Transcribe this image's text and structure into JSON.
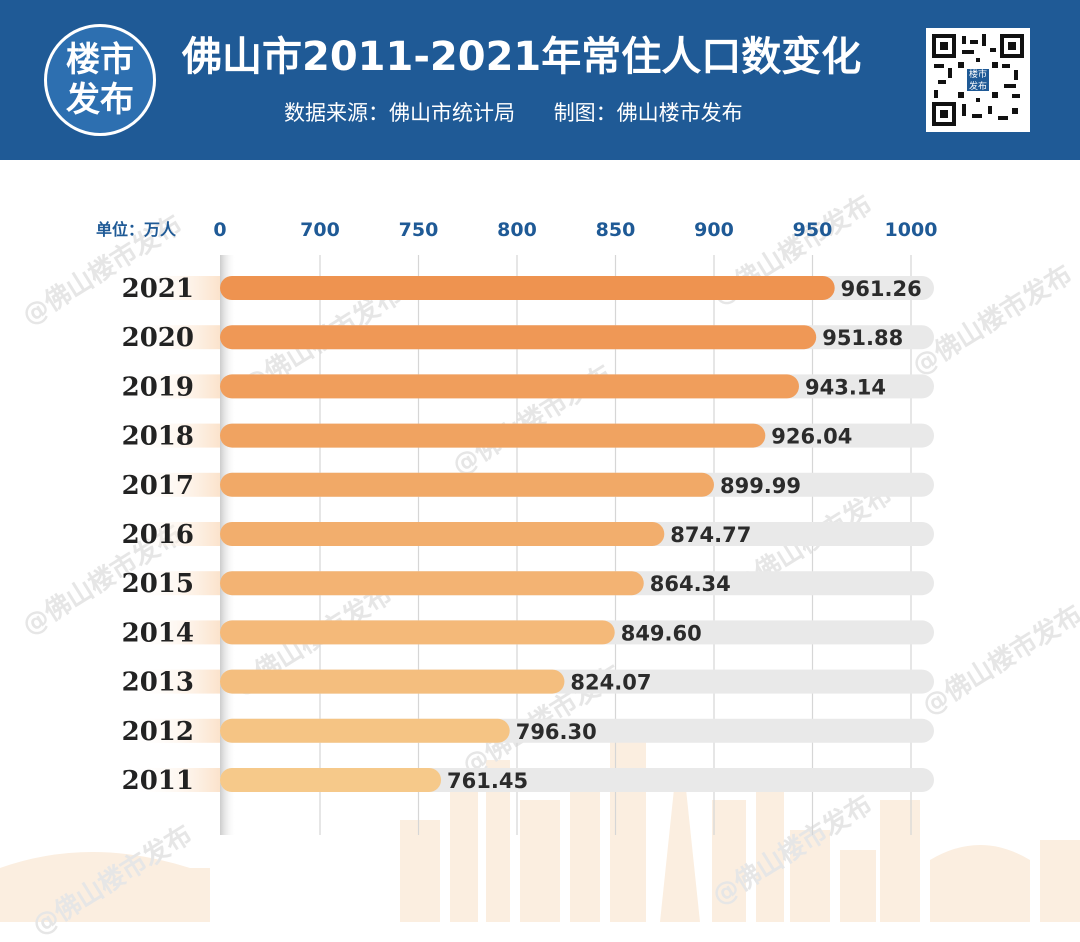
{
  "header": {
    "logo_line1": "楼市",
    "logo_line2": "发布",
    "title": "佛山市2011-2021年常住人口数变化",
    "source": "数据来源：佛山市统计局",
    "made_by": "制图：佛山楼市发布",
    "qr_badge": "楼市发布"
  },
  "watermark_text": "@佛山楼市发布",
  "unit_label": "单位：万人",
  "colors": {
    "header_bg": "#1f5a96",
    "bar_dark": "#ee9350",
    "bar_light": "#f6c98a",
    "track": "#e9e9e9",
    "axis_text": "#1f5a96"
  },
  "chart_data": {
    "type": "bar",
    "orientation": "horizontal",
    "title": "佛山市2011-2021年常住人口数变化",
    "xlabel": "",
    "ylabel": "",
    "unit": "单位：万人",
    "x_ticks": [
      0,
      700,
      750,
      800,
      850,
      900,
      950,
      1000
    ],
    "x_axis_broken": "0 to 700",
    "xlim": [
      650,
      1000
    ],
    "grid": "vertical",
    "categories": [
      "2021",
      "2020",
      "2019",
      "2018",
      "2017",
      "2016",
      "2015",
      "2014",
      "2013",
      "2012",
      "2011"
    ],
    "values": [
      961.26,
      951.88,
      943.14,
      926.04,
      899.99,
      874.77,
      864.34,
      849.6,
      824.07,
      796.3,
      761.45
    ],
    "value_labels": [
      "961.26",
      "951.88",
      "943.14",
      "926.04",
      "899.99",
      "874.77",
      "864.34",
      "849.60",
      "824.07",
      "796.30",
      "761.45"
    ]
  }
}
